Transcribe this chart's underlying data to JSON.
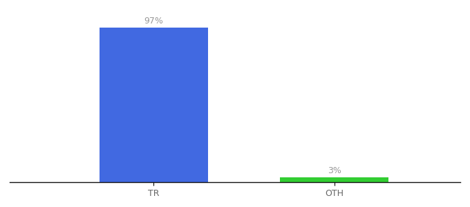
{
  "categories": [
    "TR",
    "OTH"
  ],
  "values": [
    97,
    3
  ],
  "bar_colors": [
    "#4169E1",
    "#32CD32"
  ],
  "bar_labels": [
    "97%",
    "3%"
  ],
  "ylim": [
    0,
    108
  ],
  "background_color": "#ffffff",
  "label_color": "#999999",
  "label_fontsize": 9,
  "tick_fontsize": 9,
  "bar_width": 0.6,
  "figsize": [
    6.8,
    3.0
  ],
  "dpi": 100
}
